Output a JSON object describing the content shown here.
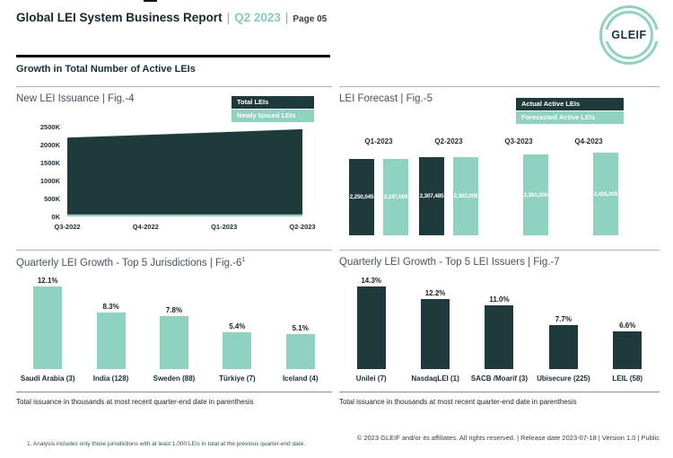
{
  "header": {
    "title": "Global LEI System Business Report",
    "separator": "|",
    "period": "Q2 2023",
    "page": "Page 05"
  },
  "logo": {
    "text": "GLEIF"
  },
  "section_title": "Growth in Total Number of Active LEIs",
  "colors": {
    "dark": "#1f3a3b",
    "teal": "#8ed3bf",
    "period_accent": "#82cdb9"
  },
  "chart_data": [
    {
      "id": "fig4",
      "type": "area",
      "title": "New LEI Issuance | Fig.-4",
      "legend": [
        {
          "label": "Total LEIs",
          "color": "#1f3a3b"
        },
        {
          "label": "Newly Issued LEIs",
          "color": "#8ed3bf"
        }
      ],
      "x": [
        "Q3-2022",
        "Q4-2022",
        "Q1-2023",
        "Q2-2023"
      ],
      "series": [
        {
          "name": "Total LEIs",
          "values_thousands": [
            2205,
            2280,
            2360,
            2440
          ]
        },
        {
          "name": "Newly Issued LEIs",
          "values_thousands": [
            30,
            30,
            30,
            30
          ]
        }
      ],
      "ylim_thousands": [
        0,
        2500
      ],
      "yticks": [
        "2500K",
        "2000K",
        "1500K",
        "1000K",
        "500K",
        "0K"
      ],
      "grid": false,
      "legend_position": "top-right"
    },
    {
      "id": "fig5",
      "type": "bar",
      "title": "LEI Forecast | Fig.-5",
      "legend": [
        {
          "label": "Actual Active LEIs",
          "color": "#1f3a3b"
        },
        {
          "label": "Forecasted Active LEIs",
          "color": "#8ed3bf"
        }
      ],
      "categories": [
        "Q1-2023",
        "Q2-2023",
        "Q3-2023",
        "Q4-2023"
      ],
      "series": [
        {
          "name": "Actual Active LEIs",
          "values": [
            2250045,
            2307485,
            null,
            null
          ],
          "labels": [
            "2,250,045",
            "2,307,485",
            null,
            null
          ]
        },
        {
          "name": "Forecasted Active LEIs",
          "values": [
            2247000,
            2302000,
            2361000,
            2425000
          ],
          "labels": [
            "2,247,000",
            "2,302,000",
            "2,361,000",
            "2,425,000"
          ]
        }
      ],
      "legend_position": "top-right"
    },
    {
      "id": "fig6",
      "type": "bar",
      "title": "Quarterly LEI Growth - Top 5 Jurisdictions | Fig.-6",
      "title_sup": "1",
      "categories": [
        "Saudi Arabia (3)",
        "India (128)",
        "Sweden (88)",
        "Türkiye (7)",
        "Iceland (4)"
      ],
      "values_percent": [
        12.1,
        8.3,
        7.8,
        5.4,
        5.1
      ],
      "labels": [
        "12.1%",
        "8.3%",
        "7.8%",
        "5.4%",
        "5.1%"
      ],
      "bar_color": "#8ed3bf",
      "note": "Total issuance in thousands at most recent quarter-end date in parenthesis"
    },
    {
      "id": "fig7",
      "type": "bar",
      "title": "Quarterly LEI Growth - Top 5 LEI Issuers | Fig.-7",
      "categories": [
        "Unilei (7)",
        "NasdaqLEI (1)",
        "SACB /Moarif (3)",
        "Ubisecure (225)",
        "LEIL (58)"
      ],
      "values_percent": [
        14.3,
        12.2,
        11.0,
        7.7,
        6.6
      ],
      "labels": [
        "14.3%",
        "12.2%",
        "11.0%",
        "7.7%",
        "6.6%"
      ],
      "bar_color": "#1f3a3b",
      "note": "Total issuance in thousands at most recent quarter-end date in parenthesis"
    }
  ],
  "footer": {
    "footnote": "1. Analysis includes only those jurisdictions with at least 1,000 LEIs in total at the previous quarter-end date.",
    "copyright": "© 2023 GLEIF and/or its affiliates. All rights reserved. | Release date 2023-07-18 | Version 1.0 | Public"
  }
}
